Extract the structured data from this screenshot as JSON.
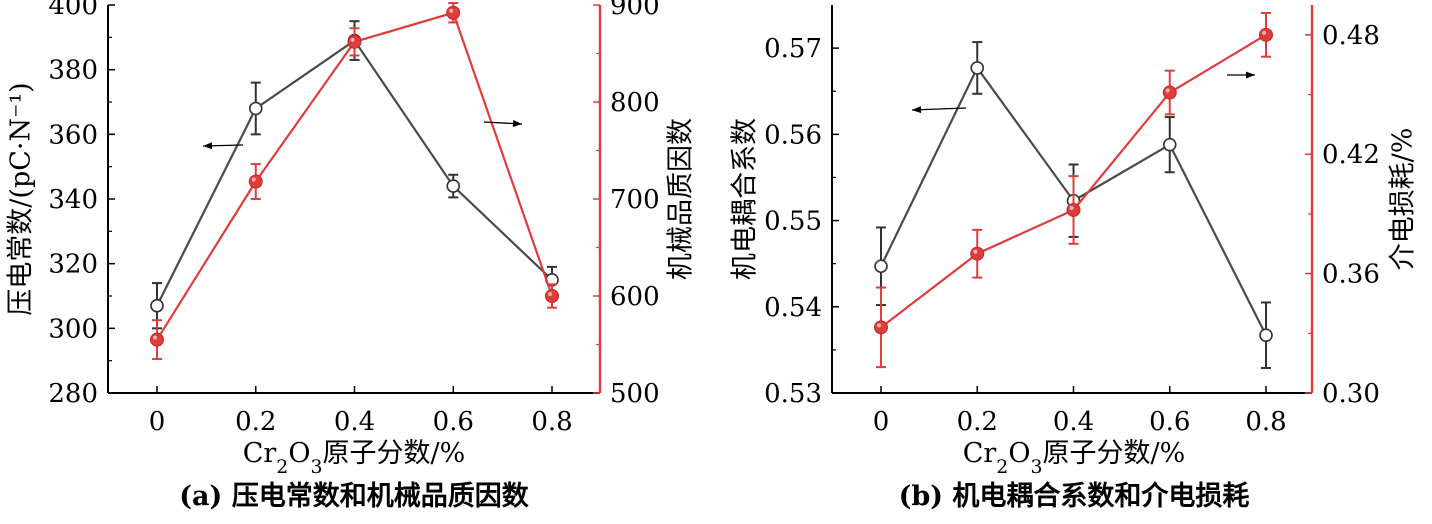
{
  "chart_data": [
    {
      "type": "line",
      "panel_label": "(a) 压电常数和机械品质因数",
      "x": [
        0,
        0.2,
        0.4,
        0.6,
        0.8
      ],
      "x_tick_labels": [
        "0",
        "0.2",
        "0.4",
        "0.6",
        "0.8"
      ],
      "xlabel_html": "Cr<tspan baseline-shift='sub' font-size='70%'>2</tspan>O<tspan baseline-shift='sub' font-size='70%'>3</tspan>原子分数/%",
      "ylabel_left": "压电常数/(pC·N⁻¹)",
      "ylabel_right": "机械品质因数",
      "ylim_left": [
        280,
        400
      ],
      "ylim_right": [
        500,
        900
      ],
      "y_ticks_left": [
        "280",
        "300",
        "320",
        "340",
        "360",
        "380",
        "400"
      ],
      "y_ticks_right": [
        "500",
        "600",
        "700",
        "800",
        "900"
      ],
      "series": [
        {
          "axis": "left",
          "marker": "open-circle",
          "color": "#4a4a4a",
          "values": [
            307,
            368,
            389,
            344,
            315
          ],
          "errors": [
            7,
            8,
            6,
            3.5,
            4
          ]
        },
        {
          "axis": "right",
          "marker": "filled-circle",
          "color": "#e03c3c",
          "values": [
            555,
            718,
            862,
            892,
            600
          ],
          "errors": [
            20,
            18,
            14,
            10,
            12
          ]
        }
      ],
      "colors": {
        "left_axis": "#000000",
        "right_axis": "#e03c3c"
      }
    },
    {
      "type": "line",
      "panel_label": "(b) 机电耦合系数和介电损耗",
      "x": [
        0,
        0.2,
        0.4,
        0.6,
        0.8
      ],
      "x_tick_labels": [
        "0",
        "0.2",
        "0.4",
        "0.6",
        "0.8"
      ],
      "xlabel_html": "Cr<tspan baseline-shift='sub' font-size='70%'>2</tspan>O<tspan baseline-shift='sub' font-size='70%'>3</tspan>原子分数/%",
      "ylabel_left": "机电耦合系数",
      "ylabel_right": "介电损耗/%",
      "ylim_left": [
        0.53,
        0.575
      ],
      "ylim_right": [
        0.3,
        0.495
      ],
      "y_ticks_left": [
        "0.53",
        "0.54",
        "0.55",
        "0.56",
        "0.57"
      ],
      "y_ticks_right": [
        "0.30",
        "0.36",
        "0.42",
        "0.48"
      ],
      "series": [
        {
          "axis": "left",
          "marker": "open-circle",
          "color": "#4a4a4a",
          "values": [
            0.5447,
            0.5677,
            0.5523,
            0.5588,
            0.5367
          ],
          "errors": [
            0.0045,
            0.003,
            0.0042,
            0.0032,
            0.0038
          ]
        },
        {
          "axis": "right",
          "marker": "filled-circle",
          "color": "#e03c3c",
          "values": [
            0.333,
            0.37,
            0.392,
            0.451,
            0.48
          ],
          "errors": [
            0.02,
            0.012,
            0.017,
            0.011,
            0.011
          ]
        }
      ],
      "colors": {
        "left_axis": "#000000",
        "right_axis": "#e03c3c"
      }
    }
  ]
}
